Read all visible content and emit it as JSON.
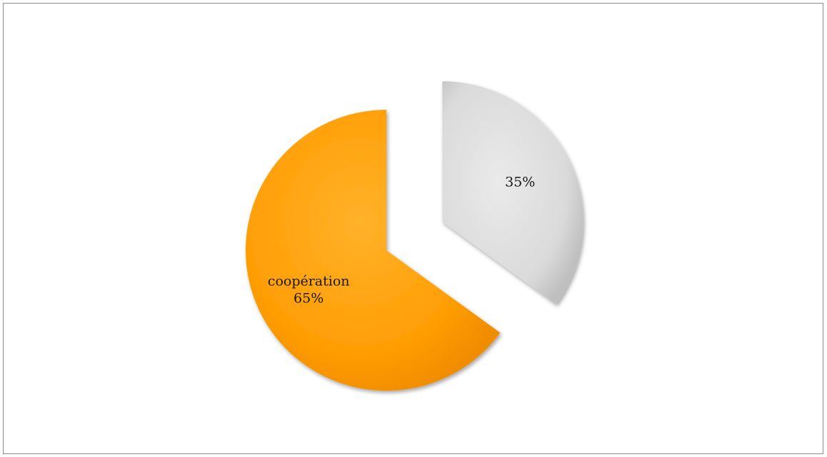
{
  "chart_data": {
    "type": "pie",
    "slices": [
      {
        "label": "coopération",
        "value": 65,
        "value_label": "65%",
        "color": "#FF9B00",
        "exploded": false
      },
      {
        "label": "",
        "value": 35,
        "value_label": "35%",
        "color": "#DCDCDC",
        "exploded": true
      }
    ],
    "title": "",
    "legend": "none"
  }
}
